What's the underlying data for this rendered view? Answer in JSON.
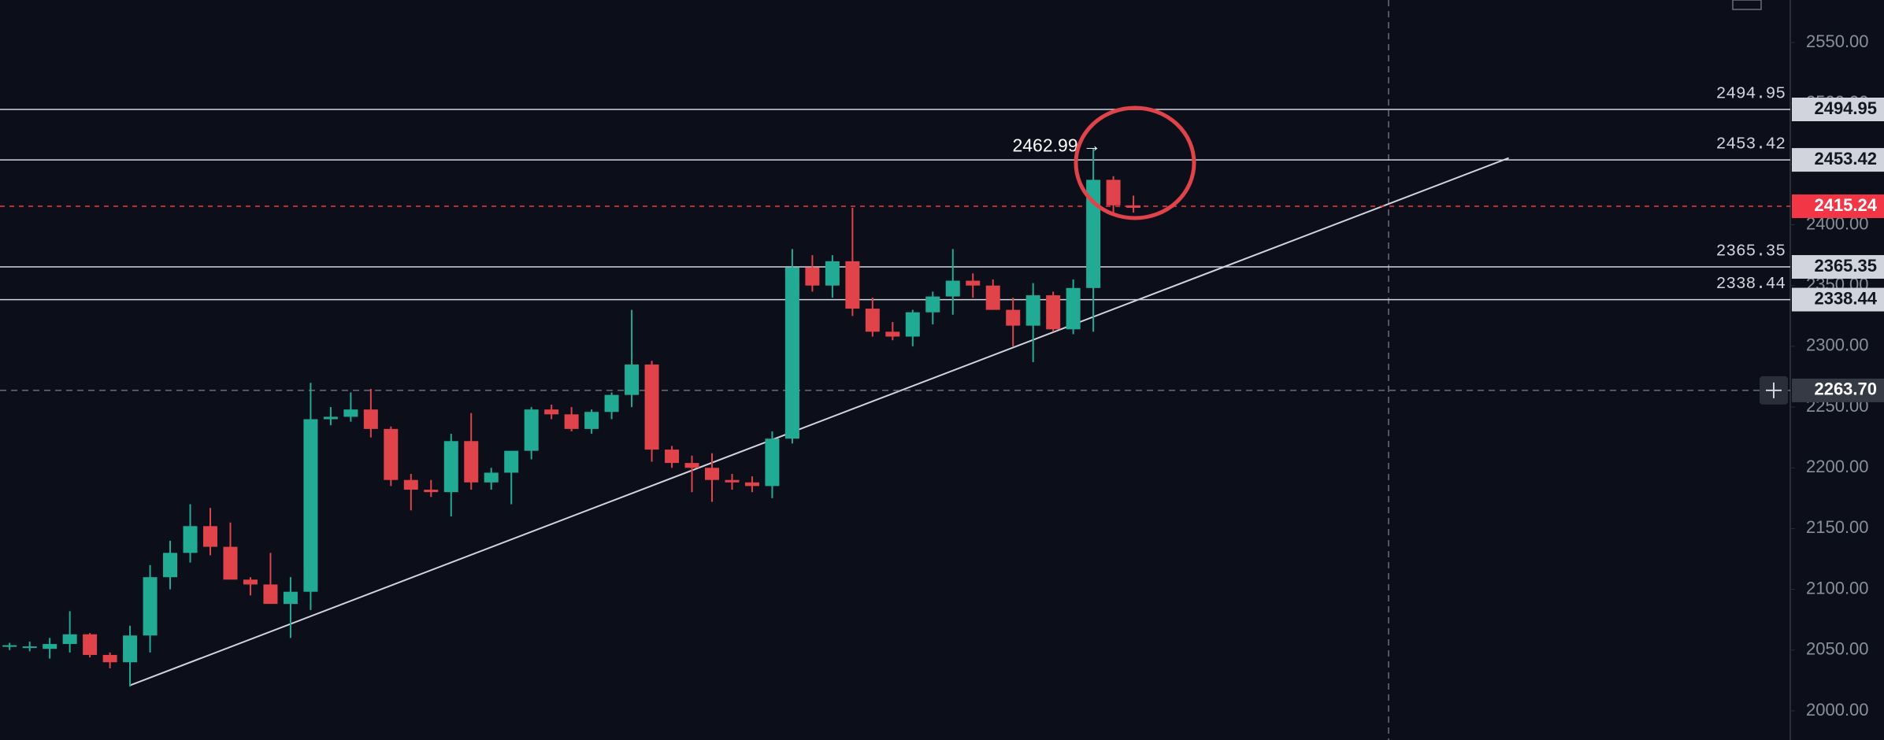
{
  "chart_data": {
    "type": "candlestick",
    "up_color": "#22ab94",
    "down_color": "#e0434a",
    "open": [
      2053,
      2053,
      2051,
      2055,
      2063,
      2046,
      2040,
      2062,
      2110,
      2130,
      2152,
      2135,
      2108,
      2104,
      2088,
      2098,
      2240,
      2242,
      2248,
      2232,
      2190,
      2182,
      2180,
      2222,
      2188,
      2196,
      2214,
      2248,
      2244,
      2232,
      2246,
      2260,
      2285,
      2215,
      2204,
      2200,
      2190,
      2188,
      2185,
      2224,
      2365,
      2350,
      2370,
      2331,
      2312,
      2308,
      2328,
      2341,
      2354,
      2350,
      2330,
      2317,
      2342,
      2314,
      2348,
      2437,
      2416
    ],
    "high": [
      2056,
      2057,
      2060,
      2082,
      2064,
      2048,
      2070,
      2120,
      2140,
      2170,
      2167,
      2155,
      2110,
      2130,
      2110,
      2270,
      2250,
      2262,
      2265,
      2234,
      2195,
      2190,
      2228,
      2245,
      2200,
      2210,
      2250,
      2252,
      2250,
      2248,
      2262,
      2330,
      2288,
      2218,
      2210,
      2212,
      2195,
      2193,
      2230,
      2380,
      2375,
      2375,
      2414,
      2340,
      2320,
      2330,
      2345,
      2380,
      2360,
      2355,
      2340,
      2352,
      2345,
      2355,
      2463,
      2440,
      2424
    ],
    "low": [
      2050,
      2049,
      2043,
      2048,
      2044,
      2035,
      2020,
      2048,
      2100,
      2122,
      2128,
      2110,
      2095,
      2090,
      2060,
      2083,
      2235,
      2238,
      2225,
      2185,
      2165,
      2176,
      2160,
      2182,
      2182,
      2170,
      2207,
      2240,
      2230,
      2228,
      2240,
      2250,
      2205,
      2200,
      2180,
      2172,
      2182,
      2180,
      2175,
      2220,
      2345,
      2340,
      2325,
      2308,
      2305,
      2300,
      2318,
      2326,
      2340,
      2330,
      2300,
      2287,
      2312,
      2310,
      2312,
      2410,
      2410
    ],
    "close": [
      2054,
      2053,
      2055,
      2063,
      2046,
      2040,
      2062,
      2110,
      2130,
      2152,
      2135,
      2108,
      2104,
      2088,
      2098,
      2240,
      2242,
      2248,
      2232,
      2190,
      2182,
      2180,
      2222,
      2188,
      2196,
      2214,
      2248,
      2244,
      2232,
      2246,
      2260,
      2285,
      2215,
      2204,
      2200,
      2190,
      2188,
      2185,
      2224,
      2365,
      2350,
      2370,
      2331,
      2312,
      2308,
      2328,
      2341,
      2354,
      2350,
      2330,
      2317,
      2342,
      2314,
      2348,
      2437,
      2416,
      2414
    ],
    "ylim": [
      1976,
      2585
    ],
    "yticks": [
      {
        "value": 2000,
        "label": "2000.00"
      },
      {
        "value": 2050,
        "label": "2050.00"
      },
      {
        "value": 2100,
        "label": "2100.00"
      },
      {
        "value": 2150,
        "label": "2150.00"
      },
      {
        "value": 2200,
        "label": "2200.00"
      },
      {
        "value": 2250,
        "label": "2250.00"
      },
      {
        "value": 2300,
        "label": "2300.00"
      },
      {
        "value": 2350,
        "label": "2350.00"
      },
      {
        "value": 2400,
        "label": "2400.00"
      },
      {
        "value": 2450,
        "label": "2450.00"
      },
      {
        "value": 2500,
        "label": "2500.00"
      },
      {
        "value": 2550,
        "label": "2550.00"
      }
    ],
    "levels": [
      2494.95,
      2453.42,
      2365.35,
      2338.44
    ],
    "level_color": "#d1d4dc",
    "last_price": 2415.24,
    "last_price_color": "#f23645",
    "crosshair_price": {
      "value": 2263.7,
      "label": "2263.70"
    },
    "annotation": "2462.99 →",
    "annotation_price": 2462.99,
    "trendline": {
      "start_index": 6,
      "start_price": 2021,
      "end_index": 74.7,
      "end_price": 2455
    }
  }
}
